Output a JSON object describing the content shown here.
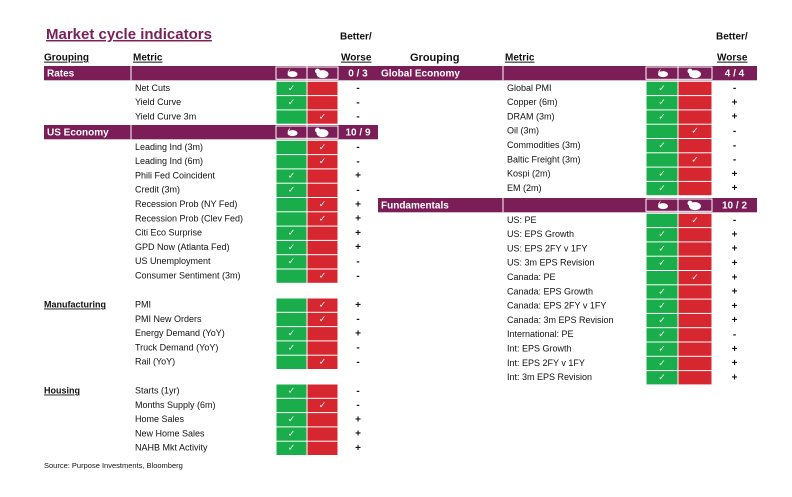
{
  "title": "Market cycle indicators",
  "headers": {
    "grouping": "Grouping",
    "metric": "Metric",
    "better_worse": [
      "Better/",
      "Worse"
    ]
  },
  "check": "✓",
  "source": "Source: Purpose Investments, Bloomberg",
  "left": {
    "sections": [
      {
        "name": "Rates",
        "score": "0 / 3",
        "rows": [
          {
            "metric": "Net Cuts",
            "signal": "bull",
            "change": "-"
          },
          {
            "metric": "Yield Curve",
            "signal": "bull",
            "change": "-"
          },
          {
            "metric": "Yield Curve 3m",
            "signal": "bear",
            "change": "-"
          }
        ]
      },
      {
        "name": "US Economy",
        "score": "10 / 9",
        "rows": [
          {
            "metric": "Leading Ind (3m)",
            "signal": "bear",
            "change": "-"
          },
          {
            "metric": "Leading Ind (6m)",
            "signal": "bear",
            "change": "-"
          },
          {
            "metric": "Phili Fed Coincident",
            "signal": "bull",
            "change": "+"
          },
          {
            "metric": "Credit (3m)",
            "signal": "bull",
            "change": "-"
          },
          {
            "metric": "Recession Prob (NY Fed)",
            "signal": "bear",
            "change": "+"
          },
          {
            "metric": "Recession Prob (Clev Fed)",
            "signal": "bear",
            "change": "+"
          },
          {
            "metric": "Citi Eco Surprise",
            "signal": "bull",
            "change": "+"
          },
          {
            "metric": "GPD Now (Atlanta Fed)",
            "signal": "bull",
            "change": "+"
          },
          {
            "metric": "US Unemployment",
            "signal": "bull",
            "change": "-"
          },
          {
            "metric": "Consumer Sentiment (3m)",
            "signal": "bear",
            "change": "-"
          }
        ]
      },
      {
        "name": "Manufacturing",
        "rows": [
          {
            "metric": "PMI",
            "signal": "bear",
            "change": "+"
          },
          {
            "metric": "PMI New Orders",
            "signal": "bear",
            "change": "-"
          },
          {
            "metric": "Energy Demand (YoY)",
            "signal": "bull",
            "change": "+"
          },
          {
            "metric": "Truck Demand (YoY)",
            "signal": "bull",
            "change": "-"
          },
          {
            "metric": "Rail (YoY)",
            "signal": "bear",
            "change": "-"
          }
        ]
      },
      {
        "name": "Housing",
        "rows": [
          {
            "metric": "Starts (1yr)",
            "signal": "bull",
            "change": "-"
          },
          {
            "metric": "Months Supply (6m)",
            "signal": "bear",
            "change": "-"
          },
          {
            "metric": "Home Sales",
            "signal": "bull",
            "change": "+"
          },
          {
            "metric": "New Home Sales",
            "signal": "bull",
            "change": "+"
          },
          {
            "metric": "NAHB Mkt Activity",
            "signal": "bull",
            "change": "+"
          }
        ]
      }
    ]
  },
  "right": {
    "sections": [
      {
        "name": "Global Economy",
        "score": "4 / 4",
        "rows": [
          {
            "metric": "Global PMI",
            "signal": "bull",
            "change": "-"
          },
          {
            "metric": "Copper (6m)",
            "signal": "bull",
            "change": "+"
          },
          {
            "metric": "DRAM (3m)",
            "signal": "bull",
            "change": "+"
          },
          {
            "metric": "Oil (3m)",
            "signal": "bear",
            "change": "-"
          },
          {
            "metric": "Commodities (3m)",
            "signal": "bull",
            "change": "-"
          },
          {
            "metric": "Baltic Freight (3m)",
            "signal": "bear",
            "change": "-"
          },
          {
            "metric": "Kospi (2m)",
            "signal": "bull",
            "change": "+"
          },
          {
            "metric": "EM (2m)",
            "signal": "bull",
            "change": "+"
          }
        ]
      },
      {
        "name": "Fundamentals",
        "score": "10 / 2",
        "rows": [
          {
            "metric": "US: PE",
            "signal": "bear",
            "change": "-"
          },
          {
            "metric": "US: EPS Growth",
            "signal": "bull",
            "change": "+"
          },
          {
            "metric": "US: EPS 2FY v 1FY",
            "signal": "bull",
            "change": "+"
          },
          {
            "metric": "US: 3m EPS Revision",
            "signal": "bull",
            "change": "+"
          },
          {
            "metric": "Canada: PE",
            "signal": "bear",
            "change": "+"
          },
          {
            "metric": "Canada: EPS Growth",
            "signal": "bull",
            "change": "+"
          },
          {
            "metric": "Canada: EPS 2FY v 1FY",
            "signal": "bull",
            "change": "+"
          },
          {
            "metric": "Canada: 3m EPS Revision",
            "signal": "bull",
            "change": "+"
          },
          {
            "metric": "International: PE",
            "signal": "bull",
            "change": "-"
          },
          {
            "metric": "Int: EPS Growth",
            "signal": "bull",
            "change": "+"
          },
          {
            "metric": "Int: EPS 2FY v 1FY",
            "signal": "bull",
            "change": "+"
          },
          {
            "metric": "Int: 3m EPS Revision",
            "signal": "bull",
            "change": "+"
          }
        ]
      }
    ]
  }
}
